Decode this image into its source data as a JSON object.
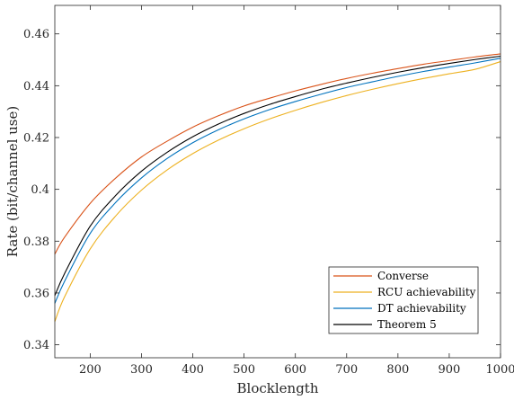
{
  "chart_data": {
    "type": "line",
    "xlabel": "Blocklength",
    "ylabel": "Rate (bit/channel use)",
    "xlim": [
      131,
      1000
    ],
    "ylim": [
      0.335,
      0.471
    ],
    "xticks": [
      200,
      300,
      400,
      500,
      600,
      700,
      800,
      900,
      1000
    ],
    "xtick_labels": [
      "200",
      "300",
      "400",
      "500",
      "600",
      "700",
      "800",
      "900",
      "1000"
    ],
    "yticks": [
      0.34,
      0.36,
      0.38,
      0.4,
      0.42,
      0.44,
      0.46
    ],
    "ytick_labels": [
      "0.34",
      "0.36",
      "0.38",
      "0.4",
      "0.42",
      "0.44",
      "0.46"
    ],
    "grid": false,
    "legend_position": "bottom-right",
    "x": [
      131,
      150,
      200,
      250,
      300,
      350,
      400,
      450,
      500,
      550,
      600,
      650,
      700,
      750,
      800,
      850,
      900,
      950,
      1000
    ],
    "series": [
      {
        "name": "Converse",
        "color": "#d95319",
        "values": [
          0.375,
          0.3815,
          0.3946,
          0.4044,
          0.4125,
          0.4186,
          0.424,
          0.4284,
          0.4322,
          0.4352,
          0.438,
          0.4405,
          0.4428,
          0.4448,
          0.4466,
          0.4483,
          0.4497,
          0.4511,
          0.4523
        ]
      },
      {
        "name": "RCU achievability",
        "color": "#edb120",
        "values": [
          0.349,
          0.3585,
          0.377,
          0.3898,
          0.3997,
          0.4075,
          0.4138,
          0.419,
          0.4234,
          0.4272,
          0.4305,
          0.4335,
          0.4362,
          0.4386,
          0.4408,
          0.4428,
          0.4446,
          0.4463,
          0.4493
        ]
      },
      {
        "name": "DT achievability",
        "color": "#0072bd",
        "values": [
          0.356,
          0.3645,
          0.383,
          0.395,
          0.4044,
          0.4119,
          0.418,
          0.423,
          0.4272,
          0.4308,
          0.4339,
          0.4367,
          0.4393,
          0.4415,
          0.4436,
          0.4455,
          0.4472,
          0.4488,
          0.4506
        ]
      },
      {
        "name": "Theorem 5",
        "color": "#000000",
        "values": [
          0.359,
          0.3675,
          0.3858,
          0.3977,
          0.407,
          0.4143,
          0.4203,
          0.4252,
          0.4293,
          0.4328,
          0.4358,
          0.4386,
          0.441,
          0.4432,
          0.4452,
          0.447,
          0.4486,
          0.4501,
          0.4514
        ]
      }
    ]
  }
}
